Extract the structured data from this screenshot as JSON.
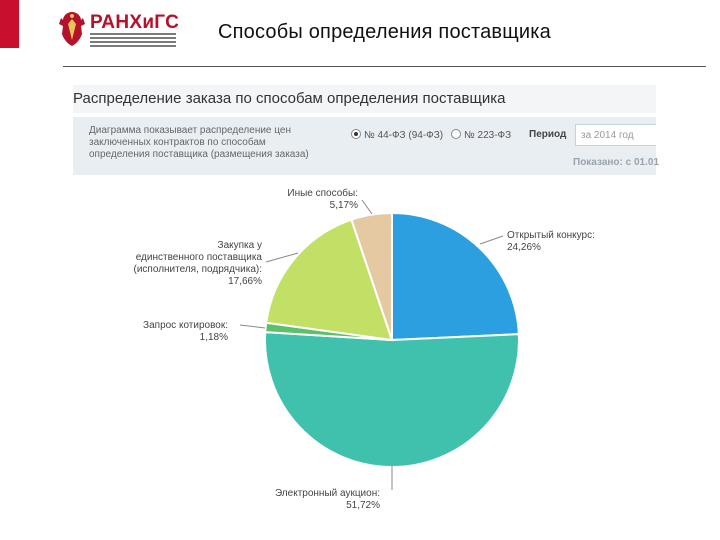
{
  "header": {
    "brand": "РАНХиГС",
    "title": "Способы определения поставщика"
  },
  "panel": {
    "title": "Распределение заказа по способам определения поставщика",
    "description": "Диаграмма показывает распределение цен заключенных контрактов по способам определения поставщика (размещения заказа)",
    "radio_44": "№ 44-ФЗ (94-ФЗ)",
    "radio_223": "№ 223-ФЗ",
    "period_label": "Период",
    "period_value": "за 2014 год",
    "shown": "Показано: с 01.01"
  },
  "chart_data": {
    "type": "pie",
    "title": "",
    "slices": [
      {
        "label": "Открытый конкурс:",
        "value": 24.26,
        "value_label": "24,26%",
        "color": "#2b9fe0"
      },
      {
        "label": "Электронный аукцион:",
        "value": 51.72,
        "value_label": "51,72%",
        "color": "#40c1ad"
      },
      {
        "label": "Запрос котировок:",
        "value": 1.18,
        "value_label": "1,18%",
        "color": "#5cbf6a"
      },
      {
        "label": "Закупка у единственного поставщика (исполнителя, подрядчика):",
        "value": 17.66,
        "value_label": "17,66%",
        "color": "#c3e066"
      },
      {
        "label": "Иные способы:",
        "value": 5.17,
        "value_label": "5,17%",
        "color": "#e4c9a3"
      }
    ],
    "start_angle_deg": 0,
    "direction": "clockwise",
    "legend": "none"
  }
}
